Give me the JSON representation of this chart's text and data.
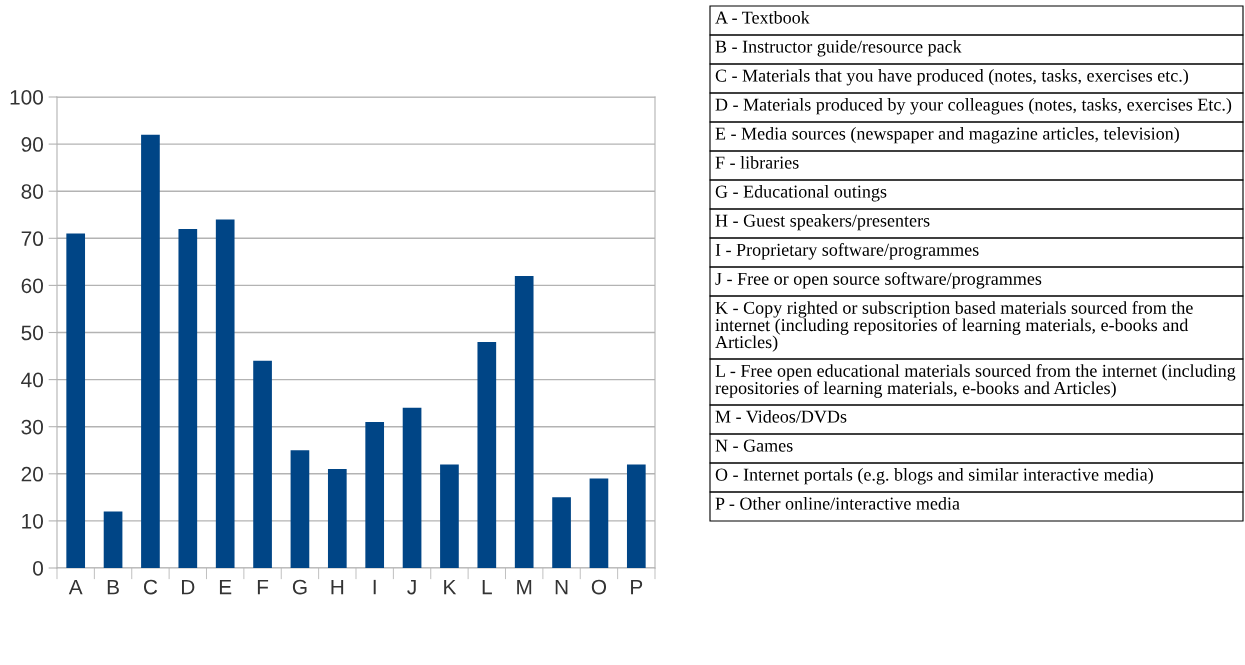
{
  "chart_data": {
    "type": "bar",
    "categories": [
      "A",
      "B",
      "C",
      "D",
      "E",
      "F",
      "G",
      "H",
      "I",
      "J",
      "K",
      "L",
      "M",
      "N",
      "O",
      "P"
    ],
    "values": [
      71,
      12,
      92,
      72,
      74,
      44,
      25,
      21,
      31,
      34,
      22,
      48,
      62,
      15,
      19,
      22
    ],
    "color": "#004586",
    "ylim": [
      0,
      100
    ],
    "yticks": [
      0,
      10,
      20,
      30,
      40,
      50,
      60,
      70,
      80,
      90,
      100
    ],
    "grid": "y",
    "annotations": [
      "A - Textbook",
      "B - Instructor guide/resource pack",
      "C - Materials that you have produced (notes, tasks, exercises etc.)",
      "D - Materials produced by your colleagues (notes, tasks, exercises Etc.)",
      "E - Media sources (newspaper and magazine articles, television)",
      "F - libraries",
      "G - Educational outings",
      "H - Guest speakers/presenters",
      "I - Proprietary software/programmes",
      "J - Free or open source software/programmes",
      "K - Copy righted or subscription based materials sourced from the internet (including repositories of learning materials, e-books and Articles)",
      "L - Free open educational materials sourced from the internet (including repositories of learning materials, e-books and Articles)",
      "M - Videos/DVDs",
      "N - Games",
      "O - Internet portals (e.g. blogs and similar interactive media)",
      "P - Other online/interactive media"
    ]
  }
}
